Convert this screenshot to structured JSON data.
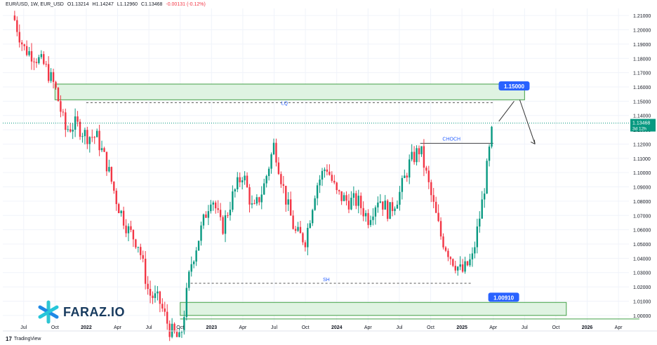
{
  "header": {
    "symbol": "EUR/USD, 1W, EUR_USD",
    "open_label": "O",
    "open": "1.13214",
    "high_label": "H",
    "high": "1.14247",
    "low_label": "L",
    "low": "1.12960",
    "close_label": "C",
    "close": "1.13468",
    "change": "-0.00131 (-0.12%)"
  },
  "price_tag": {
    "value": "1.13468",
    "countdown": "3d 12h",
    "color": "#089981"
  },
  "branding": {
    "logo_text": "FARAZ.IO",
    "logo_icon": "asterisk-icon",
    "platform": "TradingView",
    "platform_icon": "tradingview-icon"
  },
  "annotations": {
    "target_label": "1.15000",
    "support_label": "1.00910",
    "lq_label": "LQ",
    "choch_label": "CHOCH",
    "sh_label": "SH"
  },
  "colors": {
    "up": "#089981",
    "down": "#f23645",
    "zone_fill": "#dff3e2",
    "zone_stroke": "#43a047",
    "label_bg": "#2962ff",
    "grid": "#f0f3fa"
  },
  "chart_data": {
    "type": "candlestick",
    "symbol": "EUR/USD",
    "interval": "1W",
    "y_axis": {
      "position": "right",
      "range": [
        0.995,
        1.215
      ],
      "ticks": [
        "1.00000",
        "1.01000",
        "1.02000",
        "1.03000",
        "1.04000",
        "1.05000",
        "1.06000",
        "1.07000",
        "1.08000",
        "1.09000",
        "1.10000",
        "1.11000",
        "1.12000",
        "1.13000",
        "1.14000",
        "1.15000",
        "1.16000",
        "1.17000",
        "1.18000",
        "1.19000",
        "1.20000",
        "1.21000"
      ]
    },
    "x_axis": {
      "labels": [
        {
          "text": "Jul",
          "t": "2021-07"
        },
        {
          "text": "Oct",
          "t": "2021-10"
        },
        {
          "text": "2022",
          "t": "2022-01"
        },
        {
          "text": "Apr",
          "t": "2022-04"
        },
        {
          "text": "Jul",
          "t": "2022-07"
        },
        {
          "text": "Oct",
          "t": "2022-10"
        },
        {
          "text": "2023",
          "t": "2023-01"
        },
        {
          "text": "Apr",
          "t": "2023-04"
        },
        {
          "text": "Jul",
          "t": "2023-07"
        },
        {
          "text": "Oct",
          "t": "2023-10"
        },
        {
          "text": "2024",
          "t": "2024-01"
        },
        {
          "text": "Apr",
          "t": "2024-04"
        },
        {
          "text": "Jul",
          "t": "2024-07"
        },
        {
          "text": "Oct",
          "t": "2024-10"
        },
        {
          "text": "2025",
          "t": "2025-01"
        },
        {
          "text": "Apr",
          "t": "2025-04"
        },
        {
          "text": "Jul",
          "t": "2025-07"
        },
        {
          "text": "Oct",
          "t": "2025-10"
        },
        {
          "text": "2026",
          "t": "2026-01"
        },
        {
          "text": "Apr",
          "t": "2026-04"
        }
      ]
    },
    "close_path": [
      {
        "t": "2021-06",
        "p": 1.21
      },
      {
        "t": "2021-07",
        "p": 1.187
      },
      {
        "t": "2021-08",
        "p": 1.182
      },
      {
        "t": "2021-09",
        "p": 1.175
      },
      {
        "t": "2021-10",
        "p": 1.16
      },
      {
        "t": "2021-11",
        "p": 1.13
      },
      {
        "t": "2021-12",
        "p": 1.134
      },
      {
        "t": "2022-01",
        "p": 1.126
      },
      {
        "t": "2022-02",
        "p": 1.125
      },
      {
        "t": "2022-03",
        "p": 1.105
      },
      {
        "t": "2022-04",
        "p": 1.078
      },
      {
        "t": "2022-05",
        "p": 1.06
      },
      {
        "t": "2022-06",
        "p": 1.05
      },
      {
        "t": "2022-07",
        "p": 1.015
      },
      {
        "t": "2022-08",
        "p": 1.01
      },
      {
        "t": "2022-09",
        "p": 0.99
      },
      {
        "t": "2022-10",
        "p": 0.982
      },
      {
        "t": "2022-11",
        "p": 1.035
      },
      {
        "t": "2022-12",
        "p": 1.06
      },
      {
        "t": "2023-01",
        "p": 1.085
      },
      {
        "t": "2023-02",
        "p": 1.06
      },
      {
        "t": "2023-03",
        "p": 1.083
      },
      {
        "t": "2023-04",
        "p": 1.1
      },
      {
        "t": "2023-05",
        "p": 1.072
      },
      {
        "t": "2023-06",
        "p": 1.09
      },
      {
        "t": "2023-07",
        "p": 1.12
      },
      {
        "t": "2023-08",
        "p": 1.085
      },
      {
        "t": "2023-09",
        "p": 1.058
      },
      {
        "t": "2023-10",
        "p": 1.053
      },
      {
        "t": "2023-11",
        "p": 1.09
      },
      {
        "t": "2023-12",
        "p": 1.105
      },
      {
        "t": "2024-01",
        "p": 1.085
      },
      {
        "t": "2024-02",
        "p": 1.08
      },
      {
        "t": "2024-03",
        "p": 1.08
      },
      {
        "t": "2024-04",
        "p": 1.068
      },
      {
        "t": "2024-05",
        "p": 1.083
      },
      {
        "t": "2024-06",
        "p": 1.072
      },
      {
        "t": "2024-07",
        "p": 1.085
      },
      {
        "t": "2024-08",
        "p": 1.107
      },
      {
        "t": "2024-09",
        "p": 1.117
      },
      {
        "t": "2024-10",
        "p": 1.085
      },
      {
        "t": "2024-11",
        "p": 1.055
      },
      {
        "t": "2024-12",
        "p": 1.04
      },
      {
        "t": "2025-01",
        "p": 1.03
      },
      {
        "t": "2025-02",
        "p": 1.04
      },
      {
        "t": "2025-03",
        "p": 1.082
      },
      {
        "t": "2025-04",
        "p": 1.135
      }
    ],
    "zones": [
      {
        "name": "supply-zone",
        "from_t": "2021-10",
        "to_t": "2025-07",
        "low": 1.151,
        "high": 1.162
      },
      {
        "name": "demand-zone",
        "from_t": "2022-10",
        "to_t": "2025-11",
        "low": 1.0,
        "high": 1.0091
      }
    ],
    "levels": [
      {
        "name": "LQ",
        "price": 1.149,
        "from_t": "2022-01",
        "to_t": "2025-04",
        "style": "dashed"
      },
      {
        "name": "SH",
        "price": 1.0225,
        "from_t": "2022-11",
        "to_t": "2025-02",
        "style": "dashed"
      },
      {
        "name": "CHOCH",
        "price": 1.1205,
        "from_t": "2024-09",
        "to_t": "2025-04",
        "style": "solid"
      },
      {
        "name": "bottom-line",
        "price": 0.9975,
        "from_t": "2022-10",
        "to_t": "2026-06",
        "style": "solid"
      }
    ],
    "projection": [
      {
        "t": "2025-04",
        "p": 1.135
      },
      {
        "t": "2025-06",
        "p": 1.15
      },
      {
        "t": "2025-08",
        "p": 1.12
      }
    ],
    "last_price": 1.13468
  }
}
